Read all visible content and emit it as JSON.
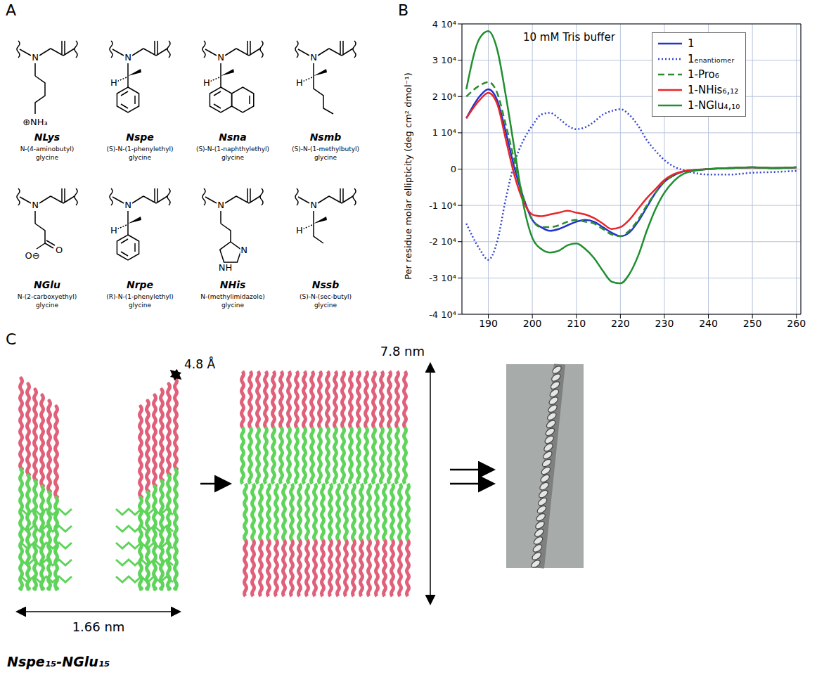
{
  "panel_labels": [
    "A",
    "B",
    "C"
  ],
  "panel_a": {
    "residues": [
      {
        "name": "NLys",
        "description": "N-(4-aminobutyl) glycine",
        "atoms": [
          "N",
          "⊕NH₃"
        ]
      },
      {
        "name": "Nspe",
        "description": "(S)-N-(1-phenylethyl) glycine",
        "atoms": [
          "N",
          "H"
        ]
      },
      {
        "name": "Nsna",
        "description": "(S)-N-(1-naphthylethyl) glycine",
        "atoms": [
          "N",
          "H"
        ]
      },
      {
        "name": "Nsmb",
        "description": "(S)-N-(1-methylbutyl) glycine",
        "atoms": [
          "N",
          "H"
        ]
      },
      {
        "name": "NGlu",
        "description": "N-(2-carboxyethyl) glycine",
        "atoms": [
          "N",
          "O",
          "O⊖"
        ]
      },
      {
        "name": "Nrpe",
        "description": "(R)-N-(1-phenylethyl) glycine",
        "atoms": [
          "N",
          "H"
        ]
      },
      {
        "name": "NHis",
        "description": "N-(methylimidazole) glycine",
        "atoms": [
          "N",
          "N",
          "NH"
        ]
      },
      {
        "name": "Nssb",
        "description": "(S)-N-(sec-butyl) glycine",
        "atoms": [
          "N",
          "H"
        ]
      }
    ]
  },
  "chart_data": {
    "type": "line",
    "y_label": "Per residue molar ellipticity (deg cm² dmol⁻¹)",
    "annotations": [
      "10 mM Tris buffer"
    ],
    "x": [
      185,
      188,
      190,
      192,
      194,
      196,
      198,
      200,
      202,
      204,
      206,
      208,
      210,
      212,
      214,
      216,
      218,
      220,
      222,
      224,
      226,
      228,
      230,
      232,
      235,
      240,
      245,
      250,
      255,
      260
    ],
    "series": [
      {
        "name": "1",
        "color": "#2233cc",
        "line_style": "solid",
        "values": [
          14000,
          20000,
          22000,
          19000,
          10000,
          0,
          -8000,
          -14000,
          -16000,
          -17000,
          -16500,
          -15500,
          -14500,
          -14000,
          -14500,
          -16000,
          -17500,
          -18500,
          -17500,
          -14500,
          -10500,
          -6500,
          -3500,
          -1800,
          -500,
          0,
          300,
          500,
          300,
          500
        ]
      },
      {
        "name": "1ₑₙₐₙₜᵢₒₘₑᵣ",
        "color": "#3344cc",
        "line_style": "dotted",
        "values": [
          -15000,
          -22000,
          -25000,
          -20000,
          -8000,
          2000,
          8000,
          12000,
          15000,
          15500,
          14000,
          12000,
          11000,
          11500,
          13000,
          15000,
          16000,
          16500,
          15000,
          12000,
          8000,
          5000,
          2500,
          800,
          -500,
          -1500,
          -1500,
          -1000,
          -800,
          -500
        ]
      },
      {
        "name": "1-Pro₆",
        "color": "#2e8b2e",
        "line_style": "dashed",
        "values": [
          20000,
          23000,
          24000,
          21000,
          12000,
          2000,
          -8000,
          -14000,
          -16000,
          -16000,
          -15500,
          -14500,
          -14000,
          -14500,
          -15000,
          -16500,
          -18000,
          -18500,
          -17000,
          -14000,
          -10000,
          -6500,
          -3500,
          -1800,
          -500,
          0,
          300,
          500,
          300,
          500
        ]
      },
      {
        "name": "1-NHis₆,₁₂",
        "color": "#e8262a",
        "line_style": "solid",
        "values": [
          14000,
          19000,
          21000,
          18000,
          8000,
          -2000,
          -9000,
          -12500,
          -13000,
          -12500,
          -12000,
          -11500,
          -12000,
          -12500,
          -13500,
          -15000,
          -16500,
          -16000,
          -14000,
          -11000,
          -8000,
          -5500,
          -3000,
          -1500,
          -500,
          0,
          300,
          500,
          300,
          500
        ]
      },
      {
        "name": "1-NGlu₄,₁₀",
        "color": "#1f8f2f",
        "line_style": "solid",
        "values": [
          22000,
          36000,
          38000,
          33000,
          20000,
          5000,
          -10000,
          -19000,
          -22000,
          -23000,
          -22500,
          -21000,
          -20500,
          -22000,
          -24500,
          -28000,
          -31000,
          -31500,
          -29000,
          -24000,
          -17000,
          -11000,
          -6500,
          -3500,
          -1000,
          0,
          300,
          500,
          300,
          500
        ]
      }
    ],
    "xlim": [
      184,
      261
    ],
    "xticks": [
      190,
      200,
      210,
      220,
      230,
      240,
      250,
      260
    ],
    "ylim": [
      -40000,
      40000
    ],
    "yticks": [
      {
        "value": -40000,
        "label": "-4 10⁴"
      },
      {
        "value": -30000,
        "label": "-3 10⁴"
      },
      {
        "value": -20000,
        "label": "-2 10⁴"
      },
      {
        "value": -10000,
        "label": "-1 10⁴"
      },
      0,
      {
        "value": 10000,
        "label": "1 10⁴"
      },
      {
        "value": 20000,
        "label": "2 10⁴"
      },
      {
        "value": 30000,
        "label": "3 10⁴"
      },
      {
        "value": 40000,
        "label": "4 10⁴"
      }
    ],
    "grid": true,
    "legend": "upper right"
  },
  "panel_c": {
    "spacing": "4.8 Å",
    "width": "1.66 nm",
    "height": "7.8 nm",
    "caption": "Nspe₁₅-NGlu₁₅"
  }
}
